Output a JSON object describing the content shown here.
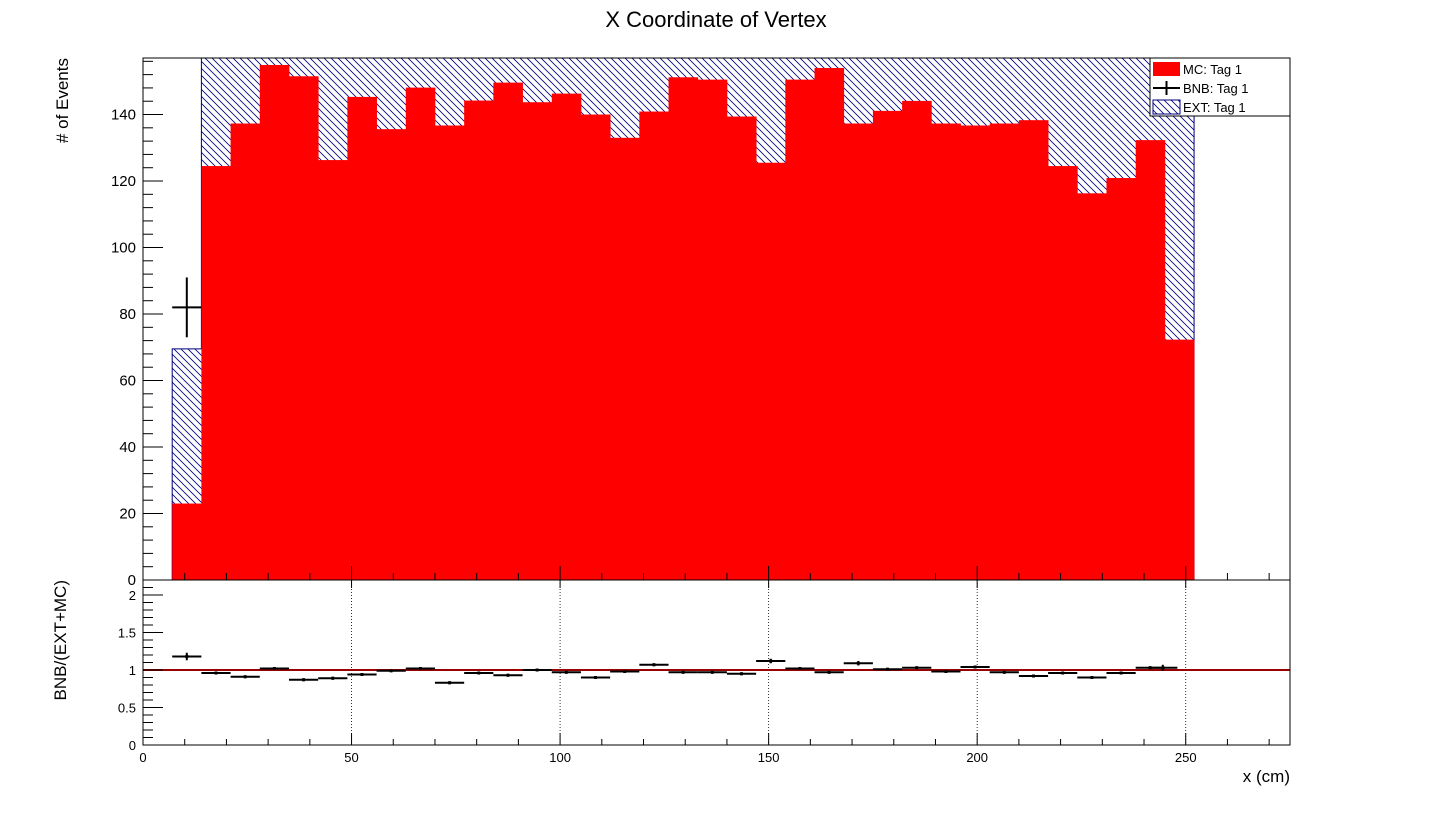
{
  "chart_data": [
    {
      "type": "bar",
      "panel": "main",
      "title": "X Coordinate of Vertex",
      "ylabel": "# of Events",
      "xlim": [
        0,
        275
      ],
      "ylim": [
        0,
        157
      ],
      "x_ticks": [
        0,
        50,
        100,
        150,
        200,
        250
      ],
      "y_ticks": [
        0,
        20,
        40,
        60,
        80,
        100,
        120,
        140
      ],
      "y_tick_labels": [
        "0",
        "20",
        "40",
        "60",
        "80",
        "100",
        "120",
        "140"
      ],
      "grid": true,
      "stacked": true,
      "legend_position": "top-right",
      "legend": [
        {
          "label": "MC: Tag 1",
          "style": "fill"
        },
        {
          "label": "BNB: Tag 1",
          "style": "errorbar"
        },
        {
          "label": "EXT: Tag 1",
          "style": "hatch"
        }
      ],
      "bin_edges": [
        7,
        14,
        21,
        28,
        35,
        42,
        49,
        56,
        63,
        70,
        77,
        84,
        91,
        98,
        105,
        112,
        119,
        126,
        133,
        140,
        147,
        154,
        161,
        168,
        175,
        182,
        189,
        196,
        203,
        210,
        217,
        224,
        231,
        238,
        245,
        252
      ],
      "series": [
        {
          "name": "MC: Tag 1",
          "color": "#ff0000",
          "values": [
            23,
            124.5,
            137.3,
            154.9,
            151.5,
            126.3,
            145.3,
            135.6,
            148.1,
            136.7,
            144.2,
            149.6,
            143.7,
            146.3,
            140.0,
            133.0,
            140.9,
            151.2,
            150.5,
            139.4,
            125.5,
            150.5,
            154.0,
            137.3,
            141.1,
            144.1,
            137.3,
            136.7,
            137.3,
            138.3,
            124.5,
            116.3,
            120.9,
            132.3,
            72.3
          ]
        },
        {
          "name": "EXT: Tag 1",
          "color": "#000080",
          "stacked_total": true,
          "values": [
            69.5,
            157,
            157,
            157,
            157,
            157,
            157,
            157,
            157,
            157,
            157,
            157,
            157,
            157,
            157,
            157,
            157,
            157,
            157,
            157,
            157,
            157,
            157,
            157,
            157,
            157,
            157,
            157,
            157,
            157,
            157,
            157,
            157,
            157,
            157
          ]
        },
        {
          "name": "BNB: Tag 1",
          "color": "#000000",
          "points": [
            {
              "x": 10.5,
              "y": 82,
              "xerr": 3.5,
              "yerr": 9
            }
          ]
        }
      ]
    },
    {
      "type": "scatter",
      "panel": "ratio",
      "ylabel": "BNB/(EXT+MC)",
      "xlabel": "x (cm)",
      "xlim": [
        0,
        275
      ],
      "ylim": [
        0,
        2.2
      ],
      "x_ticks": [
        0,
        50,
        100,
        150,
        200,
        250
      ],
      "x_tick_labels": [
        "0",
        "50",
        "100",
        "150",
        "200",
        "250"
      ],
      "y_ticks": [
        0,
        0.5,
        1,
        1.5,
        2
      ],
      "y_tick_labels": [
        "0",
        "0.5",
        "1",
        "1.5",
        "2"
      ],
      "reference_line": {
        "y": 1,
        "color": "#990000"
      },
      "grid": true,
      "x": [
        10.5,
        17.5,
        24.5,
        31.5,
        38.5,
        45.5,
        52.5,
        59.5,
        66.5,
        73.5,
        80.5,
        87.5,
        94.5,
        101.5,
        108.5,
        115.5,
        122.5,
        129.5,
        136.5,
        143.5,
        150.5,
        157.5,
        164.5,
        171.5,
        178.5,
        185.5,
        192.5,
        199.5,
        206.5,
        213.5,
        220.5,
        227.5,
        234.5,
        241.5,
        244.5
      ],
      "y": [
        1.18,
        0.96,
        0.91,
        1.02,
        0.87,
        0.89,
        0.94,
        0.99,
        1.02,
        0.83,
        0.96,
        0.93,
        1.0,
        0.97,
        0.9,
        0.98,
        1.07,
        0.97,
        0.97,
        0.95,
        1.12,
        1.02,
        0.97,
        1.09,
        1.01,
        1.03,
        0.98,
        1.04,
        0.97,
        0.92,
        0.96,
        0.9,
        0.96,
        1.03,
        1.03
      ],
      "xerr": 3.5,
      "yerr": [
        0.05,
        0.02,
        0.02,
        0.02,
        0.02,
        0.02,
        0.02,
        0.02,
        0.02,
        0.02,
        0.02,
        0.02,
        0.02,
        0.02,
        0.02,
        0.02,
        0.02,
        0.02,
        0.02,
        0.02,
        0.03,
        0.02,
        0.02,
        0.03,
        0.02,
        0.02,
        0.02,
        0.02,
        0.02,
        0.02,
        0.02,
        0.02,
        0.02,
        0.02,
        0.04
      ]
    }
  ]
}
